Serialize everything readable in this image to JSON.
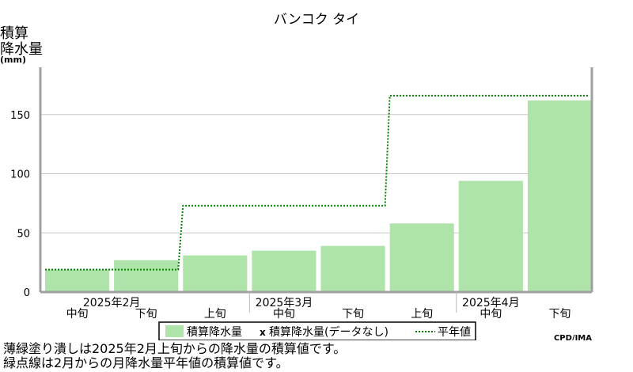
{
  "chart_data": {
    "type": "bar",
    "title": "バンコク タイ",
    "ylabel_lines": [
      "積算",
      "降水量",
      "(mm)"
    ],
    "ylim": [
      0,
      190
    ],
    "yticks": [
      0,
      50,
      100,
      150
    ],
    "categories": [
      {
        "period": "中旬",
        "month": "2025年2月"
      },
      {
        "period": "下旬",
        "month": "2025年2月"
      },
      {
        "period": "上旬",
        "month": "2025年3月"
      },
      {
        "period": "中旬",
        "month": "2025年3月"
      },
      {
        "period": "下旬",
        "month": "2025年3月"
      },
      {
        "period": "上旬",
        "month": "2025年4月"
      },
      {
        "period": "中旬",
        "month": "2025年4月"
      },
      {
        "period": "下旬",
        "month": "2025年4月"
      }
    ],
    "months": [
      "2025年2月",
      "2025年3月",
      "2025年4月"
    ],
    "series": [
      {
        "name": "積算降水量",
        "type": "bar",
        "color": "#aee3a9",
        "values": [
          19,
          27,
          31,
          35,
          39,
          58,
          94,
          162
        ]
      },
      {
        "name": "平年値",
        "type": "step-dotted",
        "color": "#008000",
        "values": [
          19,
          19,
          73,
          73,
          73,
          166,
          166,
          166
        ]
      }
    ],
    "legend": {
      "position": "bottom-center",
      "items": [
        {
          "label": "積算降水量",
          "marker": "swatch"
        },
        {
          "label": "積算降水量(データなし)",
          "marker": "x"
        },
        {
          "label": "平年値",
          "marker": "dotted"
        }
      ]
    },
    "grid": true
  },
  "credit": "CPD/JMA",
  "notes": [
    "薄緑塗り潰しは2025年2月上旬からの降水量の積算値です。",
    "緑点線は2月からの月降水量平年値の積算値です。"
  ]
}
